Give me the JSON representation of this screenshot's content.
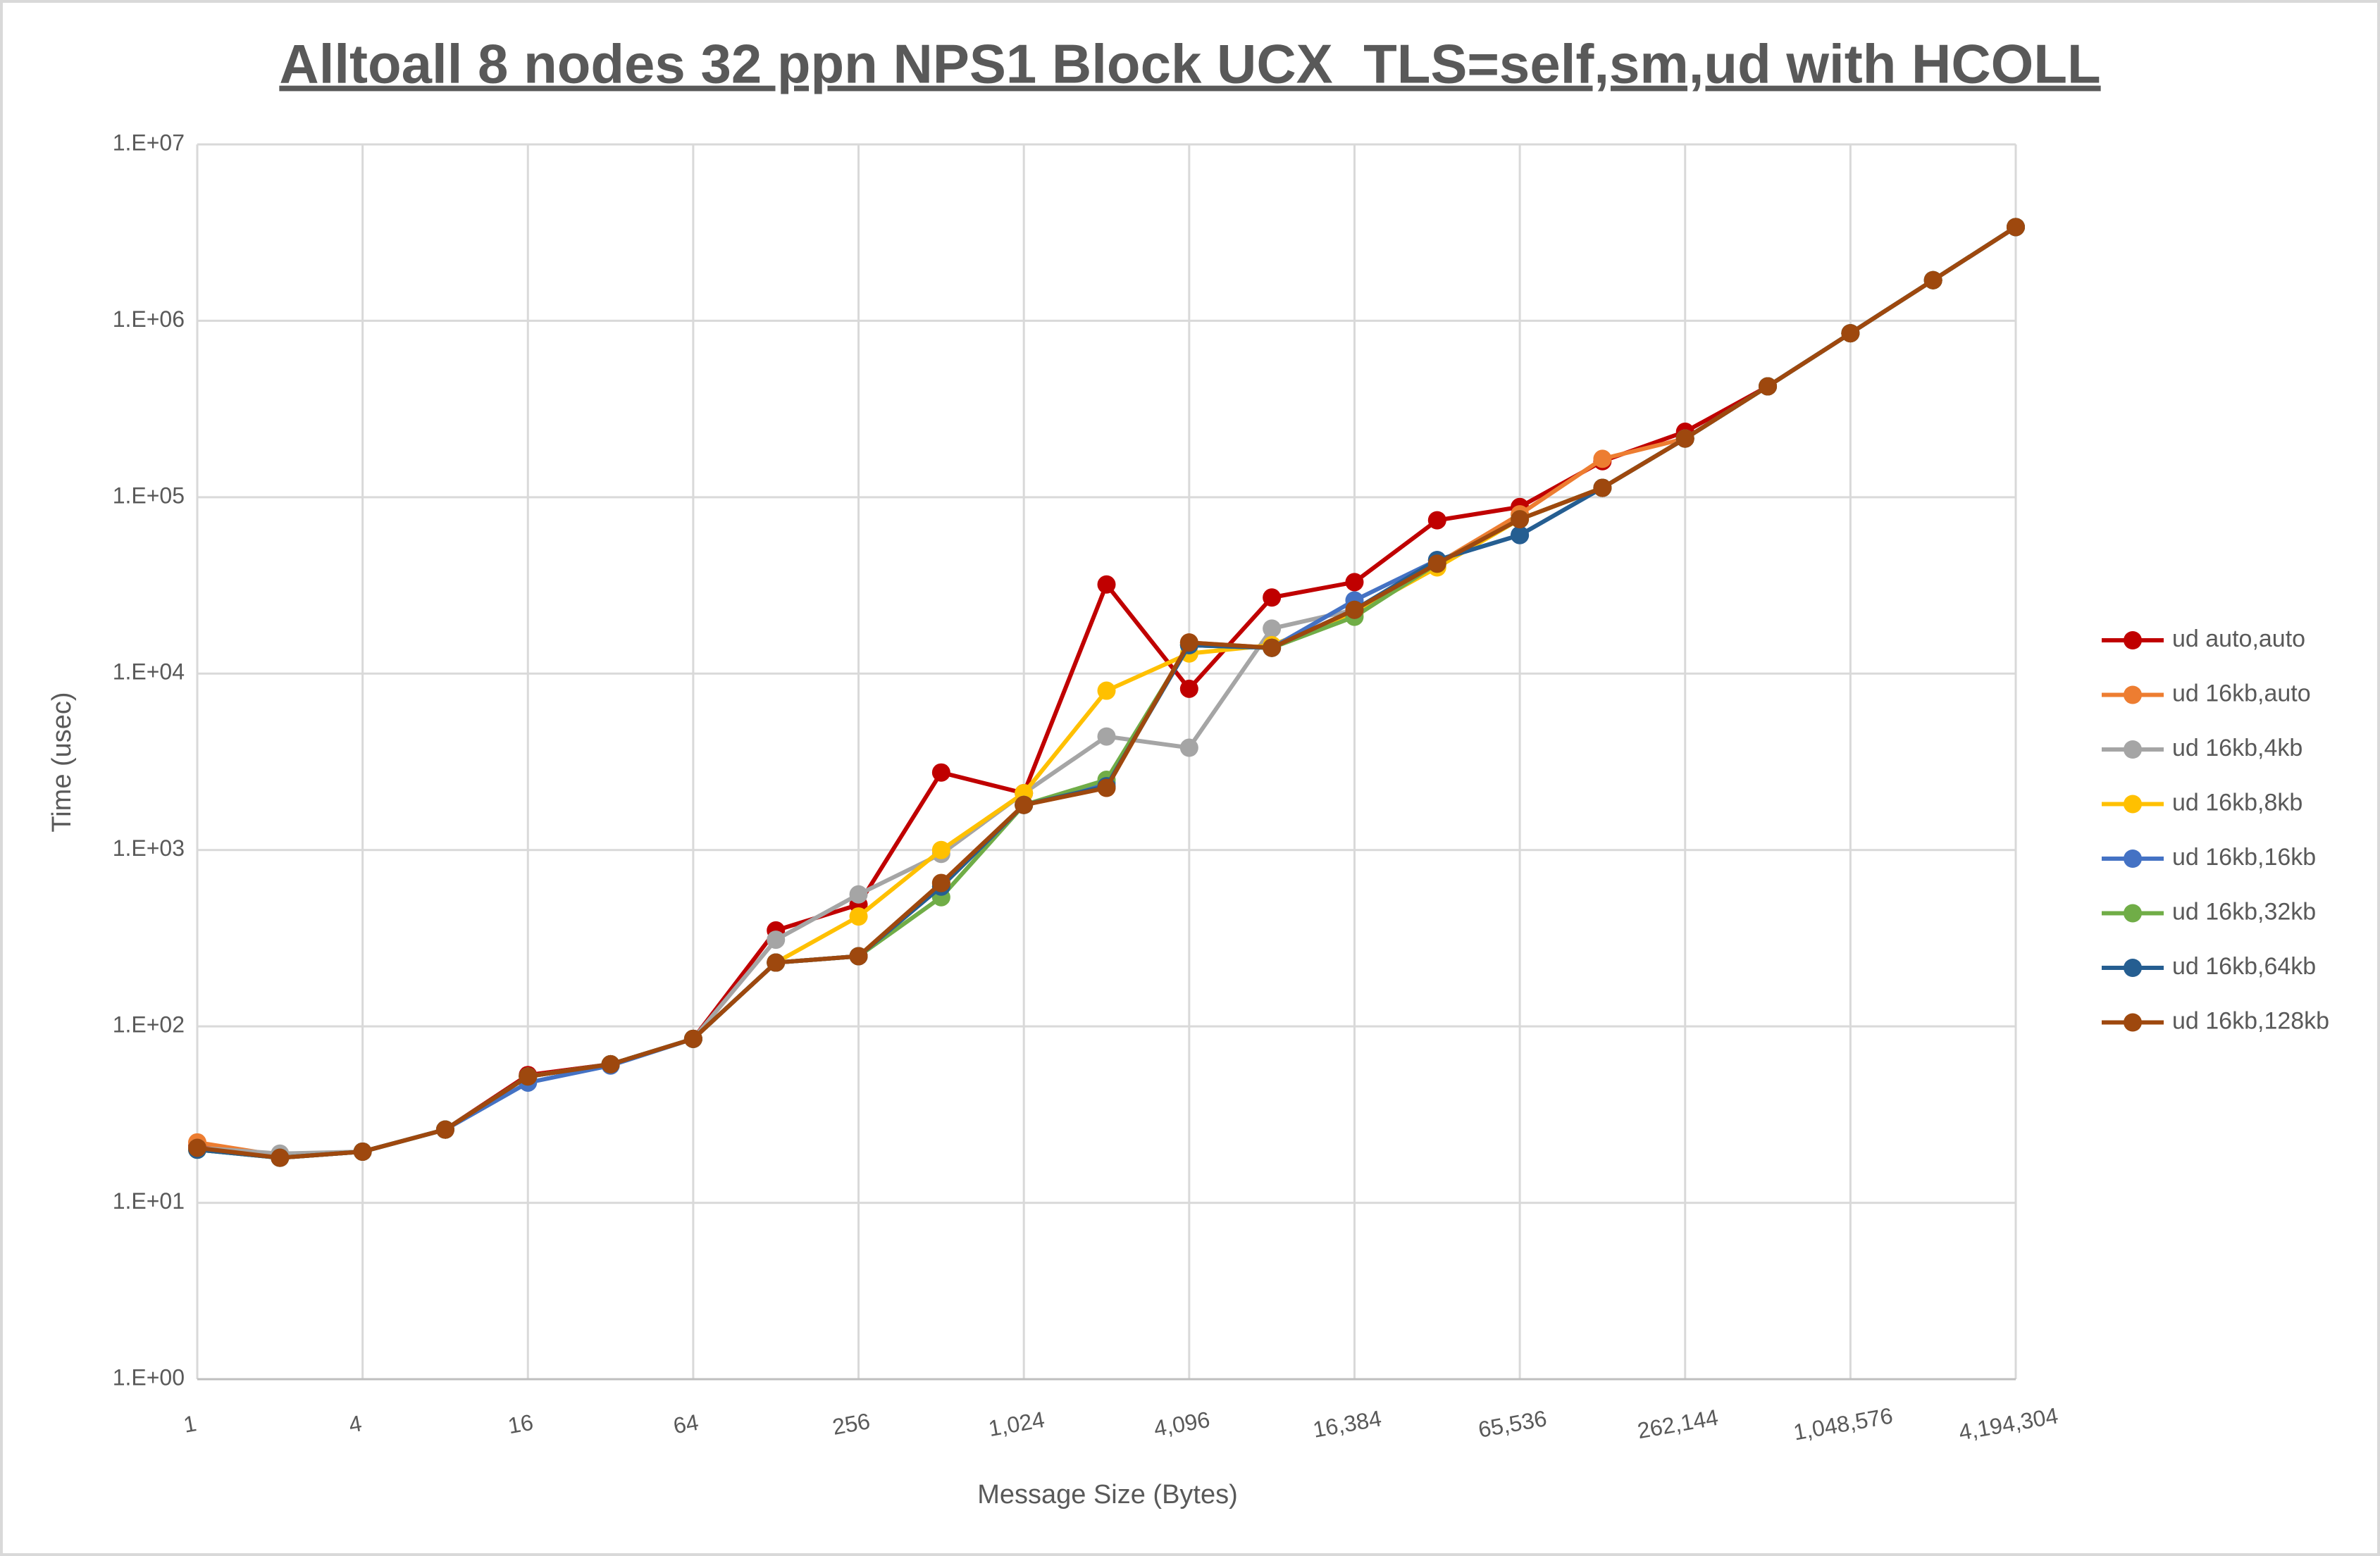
{
  "chart_data": {
    "type": "line",
    "title": "Alltoall 8 nodes 32 ppn NPS1 Block UCX_TLS=self,sm,ud with HCOLL",
    "x_label": "Message Size (Bytes)",
    "y_label": "Time (usec)",
    "x": [
      1,
      2,
      4,
      8,
      16,
      32,
      64,
      128,
      256,
      512,
      1024,
      2048,
      4096,
      8192,
      16384,
      32768,
      65536,
      131072,
      262144,
      524288,
      1048576,
      2097152,
      4194304
    ],
    "xlog": true,
    "ylog": true,
    "grid": true,
    "legend": "right",
    "xlim": [
      1,
      4194304
    ],
    "xticks": [
      1,
      4,
      16,
      64,
      256,
      {
        "value": 1024,
        "label": "1,024"
      },
      {
        "value": 4096,
        "label": "4,096"
      },
      {
        "value": 16384,
        "label": "16,384"
      },
      {
        "value": 65536,
        "label": "65,536"
      },
      {
        "value": 262144,
        "label": "262,144"
      },
      {
        "value": 1048576,
        "label": "1,048,576"
      },
      {
        "value": 4194304,
        "label": "4,194,304"
      }
    ],
    "ylim": [
      1,
      10000000
    ],
    "yticks": [
      {
        "value": 1,
        "label": "1.E+00"
      },
      {
        "value": 10,
        "label": "1.E+01"
      },
      {
        "value": 100,
        "label": "1.E+02"
      },
      {
        "value": 1000,
        "label": "1.E+03"
      },
      {
        "value": 10000,
        "label": "1.E+04"
      },
      {
        "value": 100000,
        "label": "1.E+05"
      },
      {
        "value": 1000000,
        "label": "1.E+06"
      },
      {
        "value": 10000000,
        "label": "1.E+07"
      }
    ],
    "series": [
      {
        "name": "ud auto,auto",
        "color": "#c00000",
        "values": [
          21,
          18,
          19.5,
          26,
          53,
          61,
          85,
          350,
          490,
          2750,
          2100,
          32000,
          8200,
          27000,
          33000,
          74000,
          88000,
          160000,
          235000,
          425000,
          850000,
          1700000,
          3400000
        ]
      },
      {
        "name": "ud 16kb,auto",
        "color": "#ed7d31",
        "values": [
          22,
          18.5,
          19.5,
          26,
          52,
          61,
          85,
          230,
          250,
          650,
          1800,
          2250,
          15000,
          14000,
          23000,
          42000,
          80000,
          165000,
          215000,
          425000,
          850000,
          1700000,
          3400000
        ]
      },
      {
        "name": "ud 16kb,4kb",
        "color": "#a5a5a5",
        "values": [
          20.5,
          19,
          19.5,
          26,
          52,
          61,
          85,
          310,
          560,
          950,
          2100,
          4400,
          3800,
          18000,
          23000,
          42000,
          75000,
          113000,
          215000,
          425000,
          850000,
          1700000,
          3400000
        ]
      },
      {
        "name": "ud 16kb,8kb",
        "color": "#ffc000",
        "values": [
          20,
          18,
          19.5,
          26,
          52,
          61,
          85,
          230,
          420,
          1000,
          2100,
          8000,
          13000,
          14500,
          22000,
          40000,
          75000,
          113000,
          215000,
          425000,
          850000,
          1700000,
          3400000
        ]
      },
      {
        "name": "ud 16kb,16kb",
        "color": "#4472c4",
        "values": [
          20,
          18,
          19.5,
          26,
          48,
          60,
          85,
          230,
          250,
          620,
          1800,
          2400,
          14500,
          14000,
          26000,
          44000,
          61000,
          113000,
          215000,
          425000,
          850000,
          1700000,
          3400000
        ]
      },
      {
        "name": "ud 16kb,32kb",
        "color": "#70ad47",
        "values": [
          20,
          18,
          19.5,
          26,
          52,
          61,
          85,
          230,
          250,
          540,
          1800,
          2500,
          14500,
          14000,
          21000,
          42000,
          75000,
          113000,
          215000,
          425000,
          850000,
          1700000,
          3400000
        ]
      },
      {
        "name": "ud 16kb,64kb",
        "color": "#255e91",
        "values": [
          20,
          18,
          19.5,
          26,
          52,
          61,
          85,
          230,
          250,
          620,
          1800,
          2300,
          14500,
          14000,
          23000,
          44000,
          61000,
          113000,
          215000,
          425000,
          850000,
          1700000,
          3400000
        ]
      },
      {
        "name": "ud 16kb,128kb",
        "color": "#9e480e",
        "values": [
          20.5,
          18,
          19.5,
          26,
          52,
          61,
          85,
          230,
          250,
          650,
          1800,
          2250,
          15000,
          14000,
          23000,
          42000,
          75000,
          113000,
          215000,
          425000,
          850000,
          1700000,
          3400000
        ]
      }
    ]
  }
}
